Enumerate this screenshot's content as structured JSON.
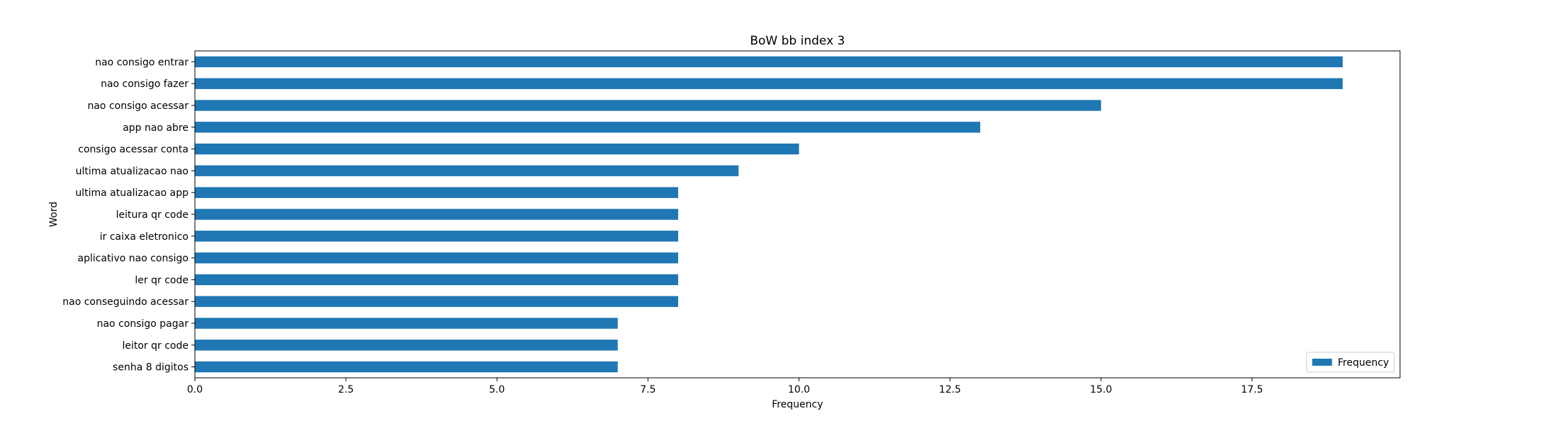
{
  "chart_data": {
    "type": "bar",
    "orientation": "horizontal",
    "title": "BoW bb index 3",
    "xlabel": "Frequency",
    "ylabel": "Word",
    "xlim": [
      0,
      20.0
    ],
    "xticks": [
      0.0,
      2.5,
      5.0,
      7.5,
      10.0,
      12.5,
      15.0,
      17.5
    ],
    "xtick_labels": [
      "0.0",
      "2.5",
      "5.0",
      "7.5",
      "10.0",
      "12.5",
      "15.0",
      "17.5"
    ],
    "grid": false,
    "legend": {
      "position": "bottom-right",
      "entries": [
        "Frequency"
      ]
    },
    "categories": [
      "nao consigo entrar",
      "nao consigo fazer",
      "nao consigo acessar",
      "app nao abre",
      "consigo acessar conta",
      "ultima atualizacao nao",
      "ultima atualizacao app",
      "leitura qr code",
      "ir caixa eletronico",
      "aplicativo nao consigo",
      "ler qr code",
      "nao conseguindo acessar",
      "nao consigo pagar",
      "leitor qr code",
      "senha 8 digitos"
    ],
    "series": [
      {
        "name": "Frequency",
        "color": "#1f77b4",
        "values": [
          19,
          19,
          15,
          13,
          10,
          9,
          8,
          8,
          8,
          8,
          8,
          8,
          7,
          7,
          7
        ]
      }
    ]
  }
}
